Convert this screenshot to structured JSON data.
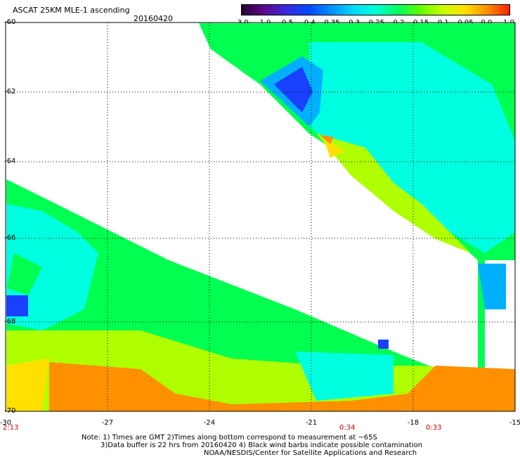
{
  "header": {
    "title": "ASCAT 25KM MLE-1 ascending",
    "date": "20160420"
  },
  "colorbar": {
    "ticks": [
      "-3.0",
      "-1.0",
      "-0.5",
      "-0.4",
      "-0.35",
      "-0.3",
      "-0.25",
      "-0.2",
      "-0.15",
      "-0.1",
      "-0.05",
      "0.0",
      "1.0"
    ],
    "colors": [
      "#2a0035",
      "#5a0a8a",
      "#3a2adf",
      "#0048ff",
      "#0090ff",
      "#00d8ff",
      "#00ffd8",
      "#00ff60",
      "#60ff00",
      "#c8ff00",
      "#ffe000",
      "#ff9000",
      "#ff2000"
    ]
  },
  "map": {
    "lat_labels": [
      "-60",
      "-62",
      "-64",
      "-66",
      "-68",
      "-70"
    ],
    "lon_labels": [
      "-30",
      "-27",
      "-24",
      "-21",
      "-18",
      "-15"
    ],
    "time_labels": [
      "2:13",
      "0:34",
      "0:33"
    ]
  },
  "footer": {
    "line1": "Note: 1) Times are GMT 2)Times along bottom correspond to measurement at ~65S",
    "line2": "3)Data buffer is 22 hrs from 20160420 4) Black wind barbs indicate possible contamination",
    "line3": "NOAA/NESDIS/Center for Satellite Applications and Research"
  }
}
